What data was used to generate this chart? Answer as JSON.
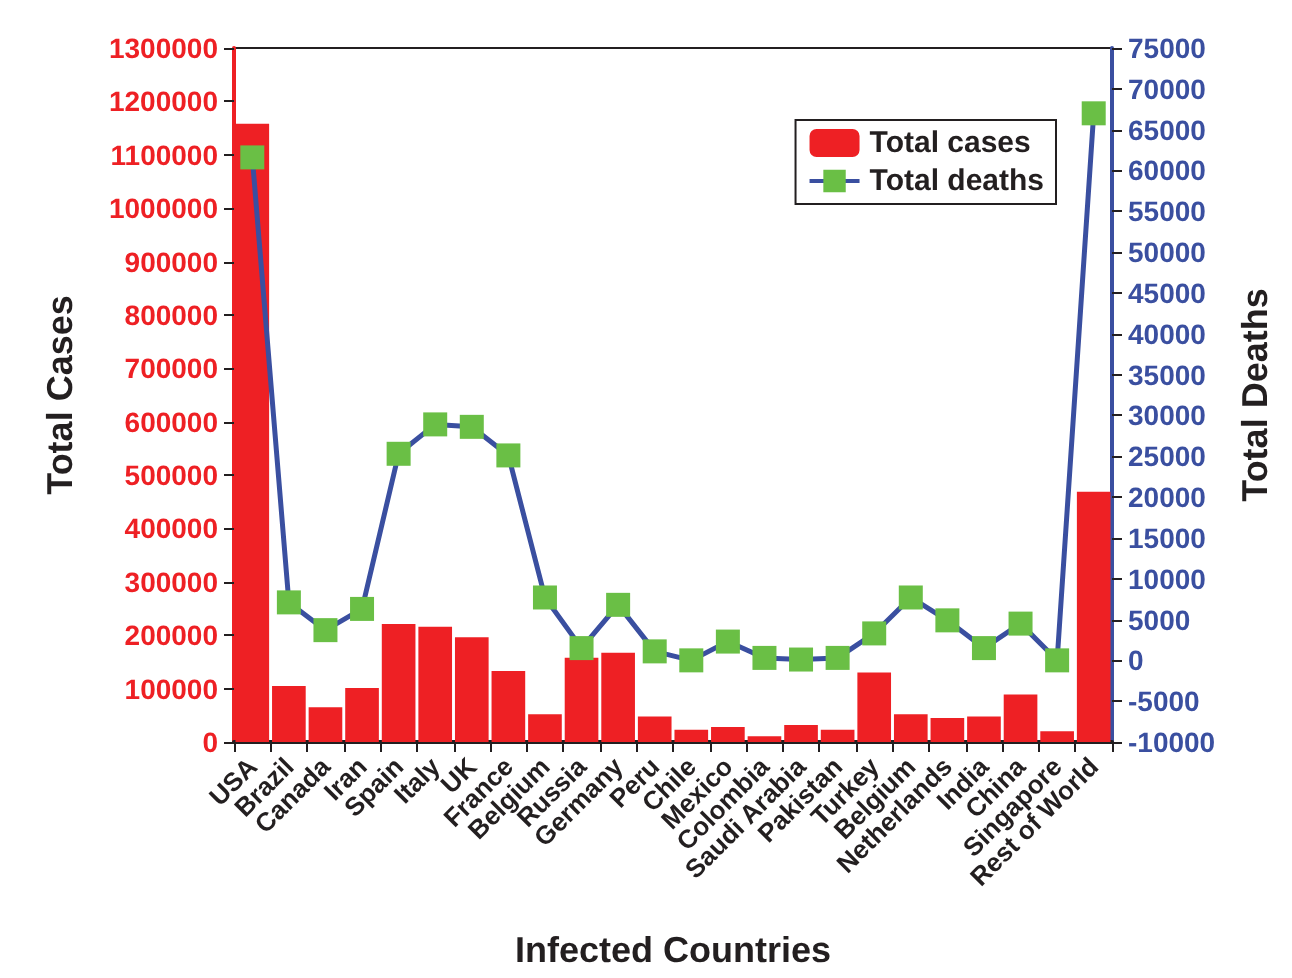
{
  "chart_data": {
    "type": "bar",
    "xlabel": "Infected Countries",
    "ylabel": "Total Cases",
    "y2label": "Total Deaths",
    "categories": [
      "USA",
      "Brazil",
      "Canada",
      "Iran",
      "Spain",
      "Italy",
      "UK",
      "France",
      "Belgium",
      "Russia",
      "Germany",
      "Peru",
      "Chile",
      "Mexico",
      "Colombia",
      "Saudi Arabia",
      "Pakistan",
      "Turkey",
      "Belgium",
      "Netherlands",
      "India",
      "China",
      "Singapore",
      "Rest of World"
    ],
    "series": [
      {
        "name": "Total cases",
        "color": "#ee2024",
        "values": [
          1158000,
          105000,
          65000,
          101000,
          221000,
          216000,
          196000,
          133000,
          52000,
          158000,
          167000,
          48000,
          23000,
          28000,
          11000,
          32000,
          23000,
          130000,
          52000,
          45000,
          48000,
          89000,
          20000,
          469000
        ]
      },
      {
        "name": "Total deaths",
        "type": "line",
        "axis": "y2",
        "color": "#3a4fa0",
        "marker": "square",
        "line_style": "solid",
        "values": [
          61600,
          7100,
          3700,
          6300,
          25300,
          28900,
          28600,
          25100,
          7700,
          1500,
          6800,
          1100,
          0,
          2300,
          300,
          100,
          300,
          3300,
          7700,
          4900,
          1500,
          4500,
          0,
          67000
        ]
      }
    ],
    "ylim": [
      0,
      1300000
    ],
    "yticks": [
      0,
      100000,
      200000,
      300000,
      400000,
      500000,
      600000,
      700000,
      800000,
      900000,
      1000000,
      1100000,
      1200000,
      1300000
    ],
    "y2lim": [
      -10000,
      75000
    ],
    "y2ticks": [
      -10000,
      -5000,
      0,
      5000,
      10000,
      15000,
      20000,
      25000,
      30000,
      35000,
      40000,
      45000,
      50000,
      55000,
      60000,
      65000,
      70000,
      75000
    ],
    "legend": "top right",
    "grid": false
  }
}
